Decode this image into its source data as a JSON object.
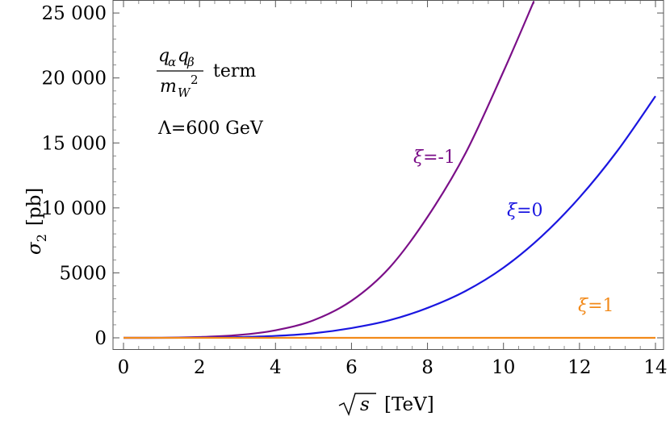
{
  "chart_data": {
    "type": "line",
    "title": "",
    "xlabel": {
      "symbol": "s",
      "unit": "[TeV]"
    },
    "ylabel": {
      "symbol": "σ",
      "subscript": "2",
      "unit": "[pb]"
    },
    "xlim": [
      0,
      14
    ],
    "ylim": [
      0,
      26000
    ],
    "grid": false,
    "legend": "none",
    "x_ticks": [
      0,
      2,
      4,
      6,
      8,
      10,
      12,
      14
    ],
    "x_tick_labels": [
      "0",
      "2",
      "4",
      "6",
      "8",
      "10",
      "12",
      "14"
    ],
    "y_ticks": [
      0,
      5000,
      10000,
      15000,
      20000,
      25000
    ],
    "y_tick_labels": [
      "0",
      "5000",
      "10 000",
      "15 000",
      "20 000",
      "25 000"
    ],
    "annotations": {
      "term": {
        "num_q1": "q",
        "num_sub1": "α",
        "num_q2": "q",
        "num_sub2": "β",
        "den_m": "m",
        "den_sub": "W",
        "den_sup": "2",
        "suffix": "term"
      },
      "lambda": "Λ=600 GeV"
    },
    "series": [
      {
        "label_symbol": "ξ",
        "label_value": "=-1",
        "color": "#7b0f88",
        "x": [
          0,
          1,
          2,
          3,
          4,
          5,
          6,
          7,
          8,
          9,
          10,
          10.8
        ],
        "y": [
          0,
          3,
          60,
          210,
          580,
          1350,
          2850,
          5400,
          9300,
          14200,
          20500,
          25900
        ]
      },
      {
        "label_symbol": "ξ",
        "label_value": "=0",
        "color": "#1a16e0",
        "x": [
          0,
          1,
          2,
          3,
          4,
          5,
          6,
          7,
          8,
          9,
          10,
          11,
          12,
          13,
          14
        ],
        "y": [
          0,
          1,
          15,
          55,
          150,
          350,
          750,
          1350,
          2300,
          3600,
          5400,
          7800,
          10800,
          14400,
          18600
        ]
      },
      {
        "label_symbol": "ξ",
        "label_value": "=1",
        "color": "#f28a1a",
        "x": [
          0,
          2,
          4,
          6,
          8,
          10,
          12,
          14
        ],
        "y": [
          0,
          0,
          0,
          0,
          0,
          0,
          0,
          0
        ]
      }
    ]
  }
}
